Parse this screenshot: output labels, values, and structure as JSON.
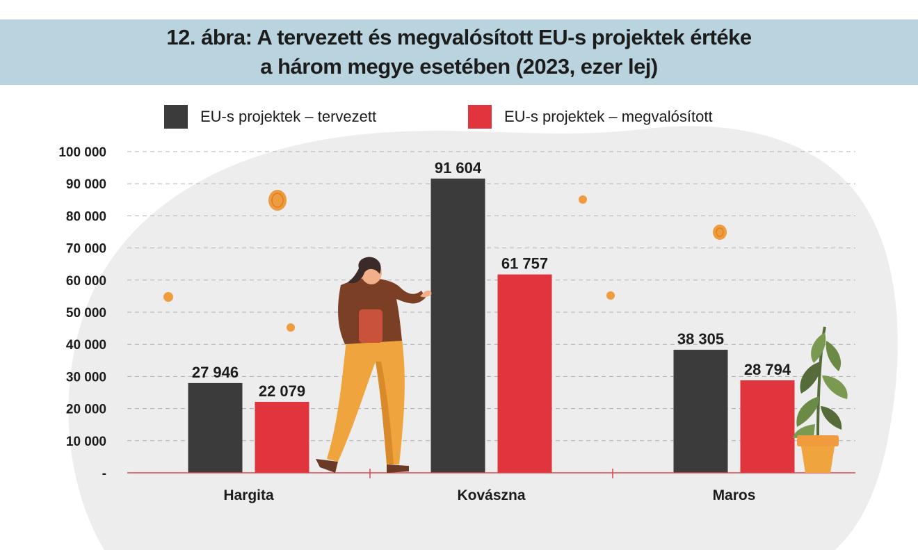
{
  "header": {
    "title_line1": "12. ábra: A tervezett és megvalósított EU-s projektek értéke",
    "title_line2": "a három megye esetében (2023, ezer lej)"
  },
  "colors": {
    "title_band": "#b9d4de",
    "planned": "#3b3b3b",
    "realized": "#e0353d",
    "axis": "#d9474f",
    "grid": "#b0b0b0",
    "blob": "#ededed",
    "coin": "#ef9b3e"
  },
  "chart_data": {
    "type": "bar",
    "categories": [
      "Hargita",
      "Kovászna",
      "Maros"
    ],
    "series": [
      {
        "name": "EU-s projektek – tervezett",
        "values": [
          27946,
          91604,
          38305
        ],
        "labels": [
          "27 946",
          "91 604",
          "38 305"
        ]
      },
      {
        "name": "EU-s projektek – megvalósított",
        "values": [
          22079,
          61757,
          28794
        ],
        "labels": [
          "22 079",
          "61 757",
          "28 794"
        ]
      }
    ],
    "ylim": [
      0,
      100000
    ],
    "yticks": [
      0,
      10000,
      20000,
      30000,
      40000,
      50000,
      60000,
      70000,
      80000,
      90000,
      100000
    ],
    "ytick_labels": [
      "-",
      "10 000",
      "20 000",
      "30 000",
      "40 000",
      "50 000",
      "60 000",
      "70 000",
      "80 000",
      "90 000",
      "100 000"
    ],
    "grid": true,
    "legend_position": "top"
  },
  "decor": {
    "coin_icon": "coin-icon",
    "woman_icon": "woman-with-bag-illustration",
    "plant_icon": "potted-plant-illustration"
  }
}
